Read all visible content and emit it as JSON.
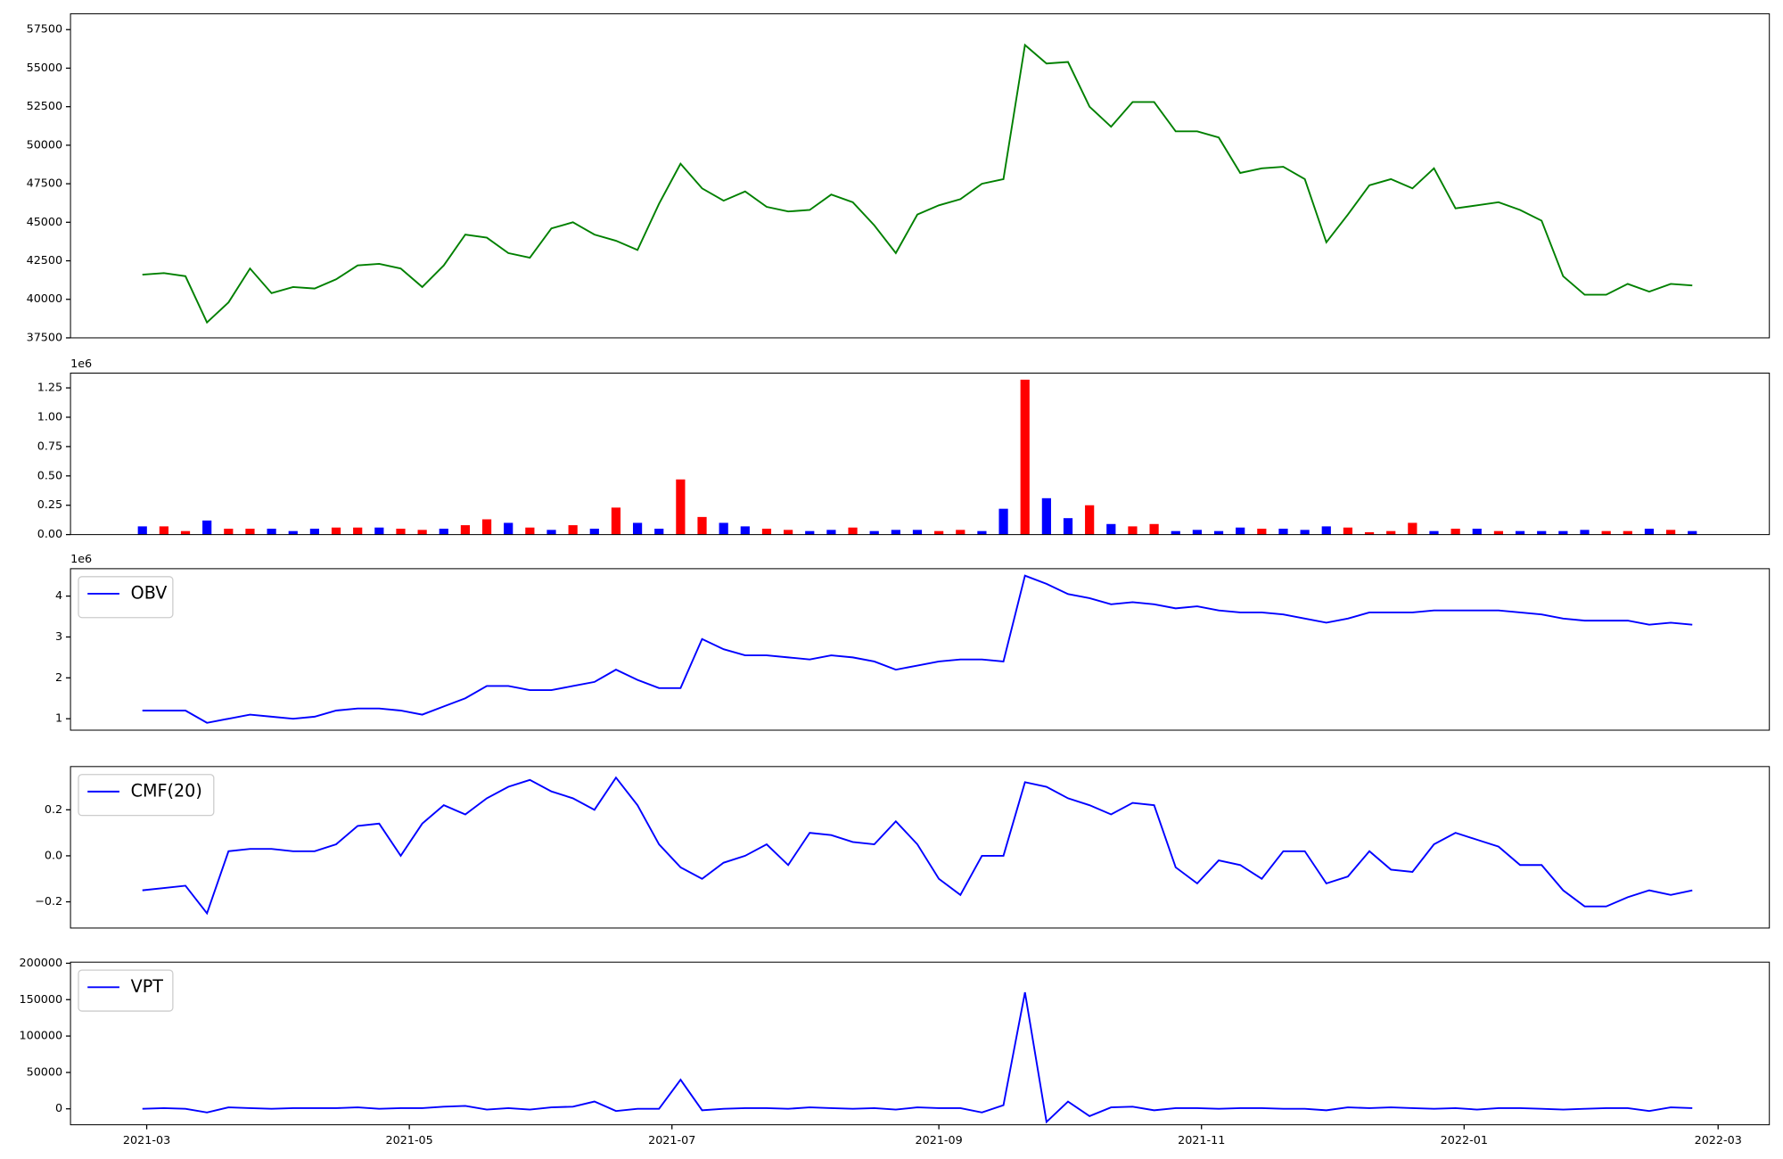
{
  "chart_data": [
    {
      "type": "line",
      "color": "green",
      "x": [
        58,
        63,
        68,
        73,
        78,
        83,
        88,
        93,
        98,
        103,
        108,
        113,
        118,
        123,
        128,
        133,
        138,
        143,
        148,
        153,
        158,
        163,
        168,
        173,
        178,
        183,
        188,
        193,
        198,
        203,
        208,
        213,
        218,
        223,
        228,
        233,
        238,
        243,
        248,
        253,
        258,
        263,
        268,
        273,
        278,
        283,
        288,
        293,
        298,
        303,
        308,
        313,
        318,
        323,
        328,
        333,
        338,
        343,
        348,
        353,
        358,
        363,
        368,
        373,
        378,
        383,
        388,
        393,
        398,
        403,
        408,
        413,
        418
      ],
      "values": [
        41600,
        41700,
        41500,
        38500,
        39800,
        42000,
        40400,
        40800,
        40700,
        41300,
        42200,
        42300,
        42000,
        40800,
        42200,
        44200,
        44000,
        43000,
        42700,
        44600,
        45000,
        44200,
        43800,
        43200,
        46200,
        48800,
        47200,
        46400,
        47000,
        46000,
        45700,
        45800,
        46800,
        46300,
        44800,
        43000,
        45500,
        46100,
        46500,
        47500,
        47800,
        56500,
        55300,
        55400,
        52500,
        51200,
        52800,
        52800,
        50900,
        50900,
        50500,
        48200,
        48500,
        48600,
        47800,
        43700,
        45500,
        47400,
        47800,
        47200,
        48500,
        45900,
        46100,
        46300,
        45800,
        45100,
        41500,
        40300,
        40300,
        41000,
        40500,
        41000,
        40900
      ],
      "xlim": [
        41.3,
        435.9
      ],
      "ylim": [
        37500,
        58530
      ],
      "yticks": [
        37500,
        40000,
        42500,
        45000,
        47500,
        50000,
        52500,
        55000,
        57500
      ]
    },
    {
      "type": "bar",
      "y_offset_label": "1e6",
      "x": [
        58,
        63,
        68,
        73,
        78,
        83,
        88,
        93,
        98,
        103,
        108,
        113,
        118,
        123,
        128,
        133,
        138,
        143,
        148,
        153,
        158,
        163,
        168,
        173,
        178,
        183,
        188,
        193,
        198,
        203,
        208,
        213,
        218,
        223,
        228,
        233,
        238,
        243,
        248,
        253,
        258,
        263,
        268,
        273,
        278,
        283,
        288,
        293,
        298,
        303,
        308,
        313,
        318,
        323,
        328,
        333,
        338,
        343,
        348,
        353,
        358,
        363,
        368,
        373,
        378,
        383,
        388,
        393,
        398,
        403,
        408,
        413,
        418
      ],
      "values": [
        0.07,
        0.07,
        0.03,
        0.12,
        0.05,
        0.05,
        0.05,
        0.03,
        0.05,
        0.06,
        0.06,
        0.06,
        0.05,
        0.04,
        0.05,
        0.08,
        0.13,
        0.1,
        0.06,
        0.04,
        0.08,
        0.05,
        0.23,
        0.1,
        0.05,
        0.47,
        0.15,
        0.1,
        0.07,
        0.05,
        0.04,
        0.03,
        0.04,
        0.06,
        0.03,
        0.04,
        0.04,
        0.03,
        0.04,
        0.03,
        0.22,
        1.32,
        0.31,
        0.14,
        0.25,
        0.09,
        0.07,
        0.09,
        0.03,
        0.04,
        0.03,
        0.06,
        0.05,
        0.05,
        0.04,
        0.07,
        0.06,
        0.02,
        0.03,
        0.1,
        0.03,
        0.05,
        0.05,
        0.03,
        0.03,
        0.03,
        0.03,
        0.04,
        0.03,
        0.03,
        0.05,
        0.04,
        0.03
      ],
      "colors": [
        "blue",
        "red",
        "red",
        "blue",
        "red",
        "red",
        "blue",
        "blue",
        "blue",
        "red",
        "red",
        "blue",
        "red",
        "red",
        "blue",
        "red",
        "red",
        "blue",
        "red",
        "blue",
        "red",
        "blue",
        "red",
        "blue",
        "blue",
        "red",
        "red",
        "blue",
        "blue",
        "red",
        "red",
        "blue",
        "blue",
        "red",
        "blue",
        "blue",
        "blue",
        "red",
        "red",
        "blue",
        "blue",
        "red",
        "blue",
        "blue",
        "red",
        "blue",
        "red",
        "red",
        "blue",
        "blue",
        "blue",
        "blue",
        "red",
        "blue",
        "blue",
        "blue",
        "red",
        "red",
        "red",
        "red",
        "blue",
        "red",
        "blue",
        "red",
        "blue",
        "blue",
        "blue",
        "blue",
        "red",
        "red",
        "blue",
        "red",
        "blue"
      ],
      "xlim": [
        41.3,
        435.9
      ],
      "ylim": [
        0,
        1.376
      ],
      "yticks": [
        {
          "value": 0,
          "label": "0.00"
        },
        0.25,
        {
          "value": 0.5,
          "label": "0.50"
        },
        0.75,
        {
          "value": 1,
          "label": "1.00"
        },
        1.25
      ]
    },
    {
      "type": "line",
      "y_offset_label": "1e6",
      "legend": "upper left",
      "x": [
        58,
        63,
        68,
        73,
        78,
        83,
        88,
        93,
        98,
        103,
        108,
        113,
        118,
        123,
        128,
        133,
        138,
        143,
        148,
        153,
        158,
        163,
        168,
        173,
        178,
        183,
        188,
        193,
        198,
        203,
        208,
        213,
        218,
        223,
        228,
        233,
        238,
        243,
        248,
        253,
        258,
        263,
        268,
        273,
        278,
        283,
        288,
        293,
        298,
        303,
        308,
        313,
        318,
        323,
        328,
        333,
        338,
        343,
        348,
        353,
        358,
        363,
        368,
        373,
        378,
        383,
        388,
        393,
        398,
        403,
        408,
        413,
        418
      ],
      "series": [
        {
          "name": "OBV",
          "color": "blue",
          "values": [
            1.2,
            1.2,
            1.2,
            0.9,
            1.0,
            1.1,
            1.05,
            1.0,
            1.05,
            1.2,
            1.25,
            1.25,
            1.2,
            1.1,
            1.3,
            1.5,
            1.8,
            1.8,
            1.7,
            1.7,
            1.8,
            1.9,
            2.2,
            1.95,
            1.75,
            1.75,
            2.95,
            2.7,
            2.55,
            2.55,
            2.5,
            2.45,
            2.55,
            2.5,
            2.4,
            2.2,
            2.3,
            2.4,
            2.45,
            2.45,
            2.4,
            4.5,
            4.3,
            4.05,
            3.95,
            3.8,
            3.85,
            3.8,
            3.7,
            3.75,
            3.65,
            3.6,
            3.6,
            3.55,
            3.45,
            3.35,
            3.45,
            3.6,
            3.6,
            3.6,
            3.65,
            3.65,
            3.65,
            3.65,
            3.6,
            3.55,
            3.45,
            3.4,
            3.4,
            3.4,
            3.3,
            3.35,
            3.3
          ]
        }
      ],
      "xlim": [
        41.3,
        435.9
      ],
      "ylim": [
        0.72,
        4.67
      ],
      "yticks": [
        1,
        2,
        3,
        4
      ]
    },
    {
      "type": "line",
      "legend": "upper left",
      "x": [
        58,
        63,
        68,
        73,
        78,
        83,
        88,
        93,
        98,
        103,
        108,
        113,
        118,
        123,
        128,
        133,
        138,
        143,
        148,
        153,
        158,
        163,
        168,
        173,
        178,
        183,
        188,
        193,
        198,
        203,
        208,
        213,
        218,
        223,
        228,
        233,
        238,
        243,
        248,
        253,
        258,
        263,
        268,
        273,
        278,
        283,
        288,
        293,
        298,
        303,
        308,
        313,
        318,
        323,
        328,
        333,
        338,
        343,
        348,
        353,
        358,
        363,
        368,
        373,
        378,
        383,
        388,
        393,
        398,
        403,
        408,
        413,
        418
      ],
      "series": [
        {
          "name": "CMF(20)",
          "color": "blue",
          "values": [
            -0.15,
            -0.14,
            -0.13,
            -0.25,
            0.02,
            0.03,
            0.03,
            0.02,
            0.02,
            0.05,
            0.13,
            0.14,
            0.0,
            0.14,
            0.22,
            0.18,
            0.25,
            0.3,
            0.33,
            0.28,
            0.25,
            0.2,
            0.34,
            0.22,
            0.05,
            -0.05,
            -0.1,
            -0.03,
            0.0,
            0.05,
            -0.04,
            0.1,
            0.09,
            0.06,
            0.05,
            0.15,
            0.05,
            -0.1,
            -0.17,
            0.0,
            0.0,
            0.32,
            0.3,
            0.25,
            0.22,
            0.18,
            0.23,
            0.22,
            -0.05,
            -0.12,
            -0.02,
            -0.04,
            -0.1,
            0.02,
            0.02,
            -0.12,
            -0.09,
            0.02,
            -0.06,
            -0.07,
            0.05,
            0.1,
            0.07,
            0.04,
            -0.04,
            -0.04,
            -0.15,
            -0.22,
            -0.22,
            -0.18,
            -0.15,
            -0.17,
            -0.15
          ]
        }
      ],
      "xlim": [
        41.3,
        435.9
      ],
      "ylim": [
        -0.314,
        0.388
      ],
      "yticks": [
        {
          "value": -0.2,
          "label": "−0.2"
        },
        {
          "value": 0,
          "label": "0.0"
        },
        0.2
      ]
    },
    {
      "type": "line",
      "legend": "upper left",
      "x": [
        58,
        63,
        68,
        73,
        78,
        83,
        88,
        93,
        98,
        103,
        108,
        113,
        118,
        123,
        128,
        133,
        138,
        143,
        148,
        153,
        158,
        163,
        168,
        173,
        178,
        183,
        188,
        193,
        198,
        203,
        208,
        213,
        218,
        223,
        228,
        233,
        238,
        243,
        248,
        253,
        258,
        263,
        268,
        273,
        278,
        283,
        288,
        293,
        298,
        303,
        308,
        313,
        318,
        323,
        328,
        333,
        338,
        343,
        348,
        353,
        358,
        363,
        368,
        373,
        378,
        383,
        388,
        393,
        398,
        403,
        408,
        413,
        418
      ],
      "series": [
        {
          "name": "VPT",
          "color": "blue",
          "values": [
            0,
            1000,
            0,
            -5000,
            2000,
            1000,
            0,
            1000,
            1000,
            1000,
            2000,
            0,
            1000,
            1000,
            3000,
            4000,
            -1000,
            1000,
            -1000,
            2000,
            3000,
            10000,
            -3000,
            0,
            0,
            40000,
            -2000,
            0,
            1000,
            1000,
            0,
            2000,
            1000,
            0,
            1000,
            -1000,
            2000,
            1000,
            1000,
            -5000,
            5000,
            160000,
            -18000,
            10000,
            -10000,
            2000,
            3000,
            -2000,
            1000,
            1000,
            0,
            1000,
            1000,
            0,
            0,
            -2000,
            2000,
            1000,
            2000,
            1000,
            0,
            1000,
            -1000,
            1000,
            1000,
            0,
            -1000,
            0,
            1000,
            1000,
            -3000,
            2000,
            1000
          ]
        }
      ],
      "xlim": [
        41.3,
        435.9
      ],
      "ylim": [
        -21900,
        201500
      ],
      "yticks": [
        0,
        50000,
        100000,
        150000,
        200000
      ],
      "xticks": [
        {
          "value": 59,
          "label": "2021-03"
        },
        {
          "value": 120,
          "label": "2021-05"
        },
        {
          "value": 181,
          "label": "2021-07"
        },
        {
          "value": 243,
          "label": "2021-09"
        },
        {
          "value": 304,
          "label": "2021-11"
        },
        {
          "value": 365,
          "label": "2022-01"
        },
        {
          "value": 424,
          "label": "2022-03"
        }
      ]
    }
  ]
}
